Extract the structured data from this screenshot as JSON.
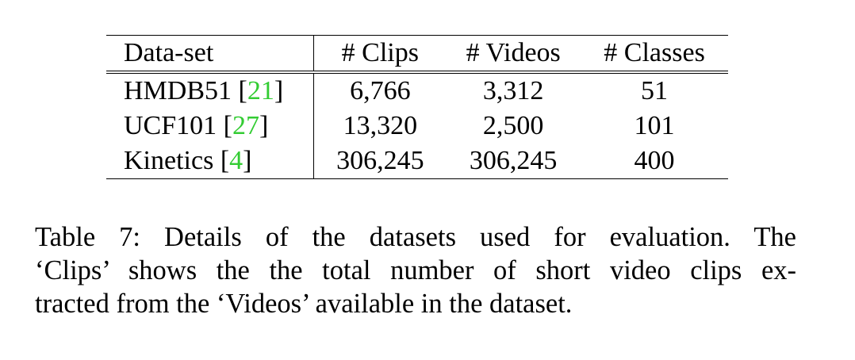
{
  "table": {
    "headers": [
      "Data-set",
      "# Clips",
      "# Videos",
      "# Classes"
    ],
    "rows": [
      {
        "name": "HMDB51",
        "cite": "21",
        "clips": "6,766",
        "videos": "3,312",
        "classes": "51"
      },
      {
        "name": "UCF101",
        "cite": "27",
        "clips": "13,320",
        "videos": "2,500",
        "classes": "101"
      },
      {
        "name": "Kinetics",
        "cite": "4",
        "clips": "306,245",
        "videos": "306,245",
        "classes": "400"
      }
    ]
  },
  "caption": {
    "line1": "Table 7: Details of the datasets used for evaluation. The",
    "line2": "‘Clips’ shows the the total number of short video clips ex-",
    "line3": "tracted from the ‘Videos’ available in the dataset."
  },
  "colors": {
    "citation": "#33cc33"
  }
}
